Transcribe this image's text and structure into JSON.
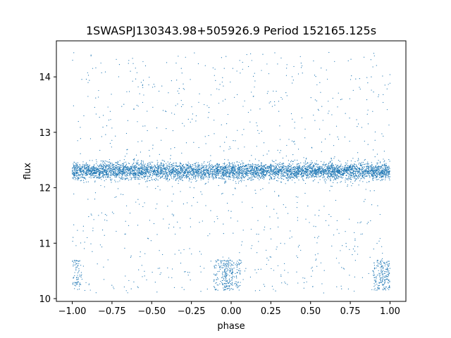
{
  "chart_data": {
    "type": "scatter",
    "title": "1SWASPJ130343.98+505926.9 Period 152165.125s",
    "xlabel": "phase",
    "ylabel": "flux",
    "xlim": [
      -1.1,
      1.1
    ],
    "ylim": [
      9.95,
      14.65
    ],
    "xticks": [
      -1.0,
      -0.75,
      -0.5,
      -0.25,
      0.0,
      0.25,
      0.5,
      0.75,
      1.0
    ],
    "xtick_labels": [
      "−1.00",
      "−0.75",
      "−0.50",
      "−0.25",
      "0.00",
      "0.25",
      "0.50",
      "0.75",
      "1.00"
    ],
    "yticks": [
      10,
      11,
      12,
      13,
      14
    ],
    "ytick_labels": [
      "10",
      "11",
      "12",
      "13",
      "14"
    ],
    "grid": false,
    "legend": "none",
    "series": [
      {
        "color": "#1f77b4",
        "phase_range": [
          -1.0,
          1.0
        ],
        "baseline_flux": 12.3,
        "baseline_scatter": 0.15,
        "eclipse_phases": [
          -1.0,
          -0.05,
          0.0,
          0.95,
          1.0
        ],
        "eclipse_flux_range": [
          10.15,
          10.7
        ],
        "outlier_flux_range": [
          10.1,
          14.45
        ]
      }
    ]
  }
}
